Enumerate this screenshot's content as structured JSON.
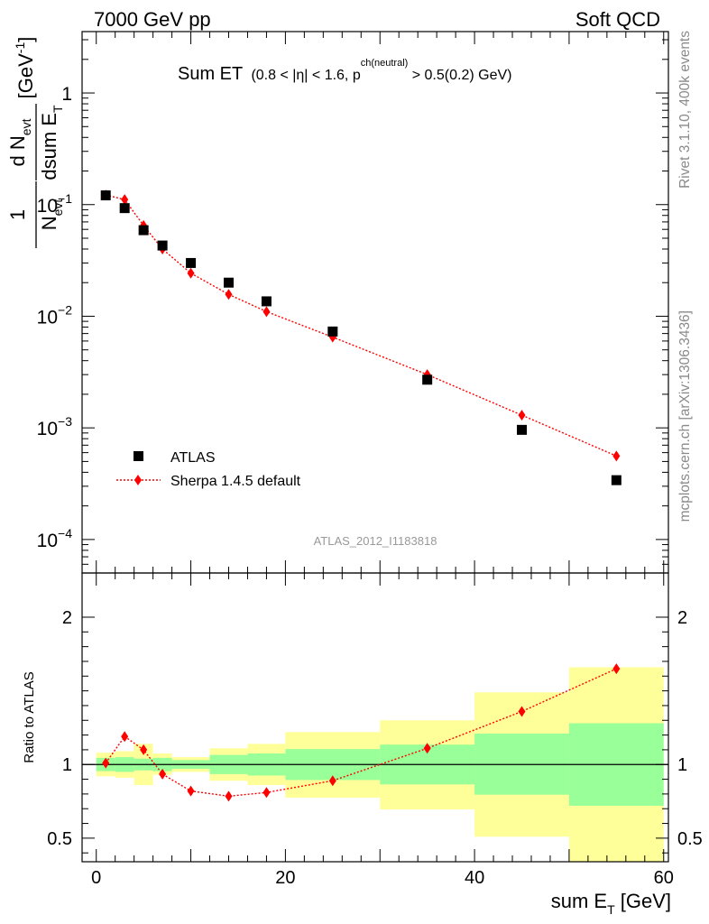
{
  "header": {
    "left": "7000 GeV pp",
    "right": "Soft QCD"
  },
  "plot_title": {
    "main": "Sum ET",
    "cut_prefix": "(0.8 < |η| < 1.6, p",
    "cut_sup": "ch(neutral)",
    "cut_suffix": " > 0.5(0.2) GeV)"
  },
  "side_labels": {
    "version": "Rivet 3.1.10,  400k events",
    "source": "mcplots.cern.ch [arXiv:1306.3436]"
  },
  "analysis_id": "ATLAS_2012_I1183818",
  "colors": {
    "data_marker": "#000000",
    "mc_line": "#ff0000",
    "band_inner": "#99ff99",
    "band_outer": "#ffff99"
  },
  "chart_data": [
    {
      "type": "scatter",
      "panel": "main",
      "ylabel": "1/N_evt dN_evt/dsum E_T [GeV^-1]",
      "ylabel_parts": {
        "num1": "1",
        "den1": "N",
        "den1_sub": "evt",
        "num2": "d N",
        "num2_sub": "evt",
        "den2": "dsum E",
        "den2_sub": "T",
        "unit": "[GeV",
        "unit_sup": "-1",
        "unit_close": "]"
      },
      "yscale": "log",
      "xlim": [
        -1.5,
        60.5
      ],
      "ylim_log10": [
        -4.3,
        0.55
      ],
      "ytick_values": [
        1,
        0.1,
        0.01,
        0.001,
        0.0001
      ],
      "ytick_labels": [
        {
          "base": "1",
          "exp": ""
        },
        {
          "base": "10",
          "exp": "−1"
        },
        {
          "base": "10",
          "exp": "−2"
        },
        {
          "base": "10",
          "exp": "−3"
        },
        {
          "base": "10",
          "exp": "−4"
        }
      ],
      "legend_position": "lower-left",
      "series": [
        {
          "name": "ATLAS",
          "style": "square-marker",
          "x": [
            1,
            3,
            5,
            7,
            10,
            14,
            18,
            25,
            35,
            45,
            55
          ],
          "y": [
            0.121,
            0.093,
            0.059,
            0.043,
            0.03,
            0.02,
            0.0136,
            0.0073,
            0.0027,
            0.00096,
            0.00034
          ]
        },
        {
          "name": "Sherpa 1.4.5 default",
          "style": "diamond-dotted-line",
          "x": [
            1,
            3,
            5,
            7,
            10,
            14,
            18,
            25,
            35,
            45,
            55
          ],
          "y": [
            0.122,
            0.111,
            0.065,
            0.04,
            0.0243,
            0.0157,
            0.011,
            0.0065,
            0.003,
            0.0013,
            0.00056
          ]
        }
      ]
    },
    {
      "type": "line",
      "panel": "ratio",
      "xlabel": "sum E_T [GeV]",
      "xlabel_parts": {
        "main": "sum E",
        "sub": "T",
        "unit": " [GeV]"
      },
      "ylabel": "Ratio to ATLAS",
      "xlim": [
        -1.5,
        60.5
      ],
      "ylim": [
        0.34,
        2.3
      ],
      "xtick_values": [
        0,
        20,
        40,
        60
      ],
      "xtick_labels": [
        "0",
        "20",
        "40",
        "60"
      ],
      "ytick_values": [
        0.5,
        1,
        2
      ],
      "ytick_labels": [
        "0.5",
        "1",
        "2"
      ],
      "reference_line": 1,
      "bands": {
        "bin_edges": [
          0,
          2,
          4,
          6,
          8,
          12,
          16,
          20,
          30,
          40,
          50,
          60
        ],
        "inner_low": [
          0.955,
          0.95,
          0.96,
          0.955,
          0.97,
          0.935,
          0.925,
          0.895,
          0.865,
          0.795,
          0.72
        ],
        "inner_high": [
          1.045,
          1.05,
          1.04,
          1.045,
          1.03,
          1.065,
          1.075,
          1.105,
          1.135,
          1.21,
          1.28
        ],
        "outer_low": [
          0.92,
          0.91,
          0.86,
          0.93,
          0.95,
          0.89,
          0.86,
          0.775,
          0.695,
          0.51,
          0.34
        ],
        "outer_high": [
          1.08,
          1.09,
          1.14,
          1.075,
          1.05,
          1.11,
          1.14,
          1.22,
          1.3,
          1.49,
          1.66
        ]
      },
      "series": [
        {
          "name": "Sherpa 1.4.5 default",
          "x": [
            1,
            3,
            5,
            7,
            10,
            14,
            18,
            25,
            35,
            45,
            55
          ],
          "y": [
            1.01,
            1.19,
            1.1,
            0.935,
            0.82,
            0.785,
            0.81,
            0.89,
            1.11,
            1.36,
            1.65
          ]
        }
      ]
    }
  ]
}
